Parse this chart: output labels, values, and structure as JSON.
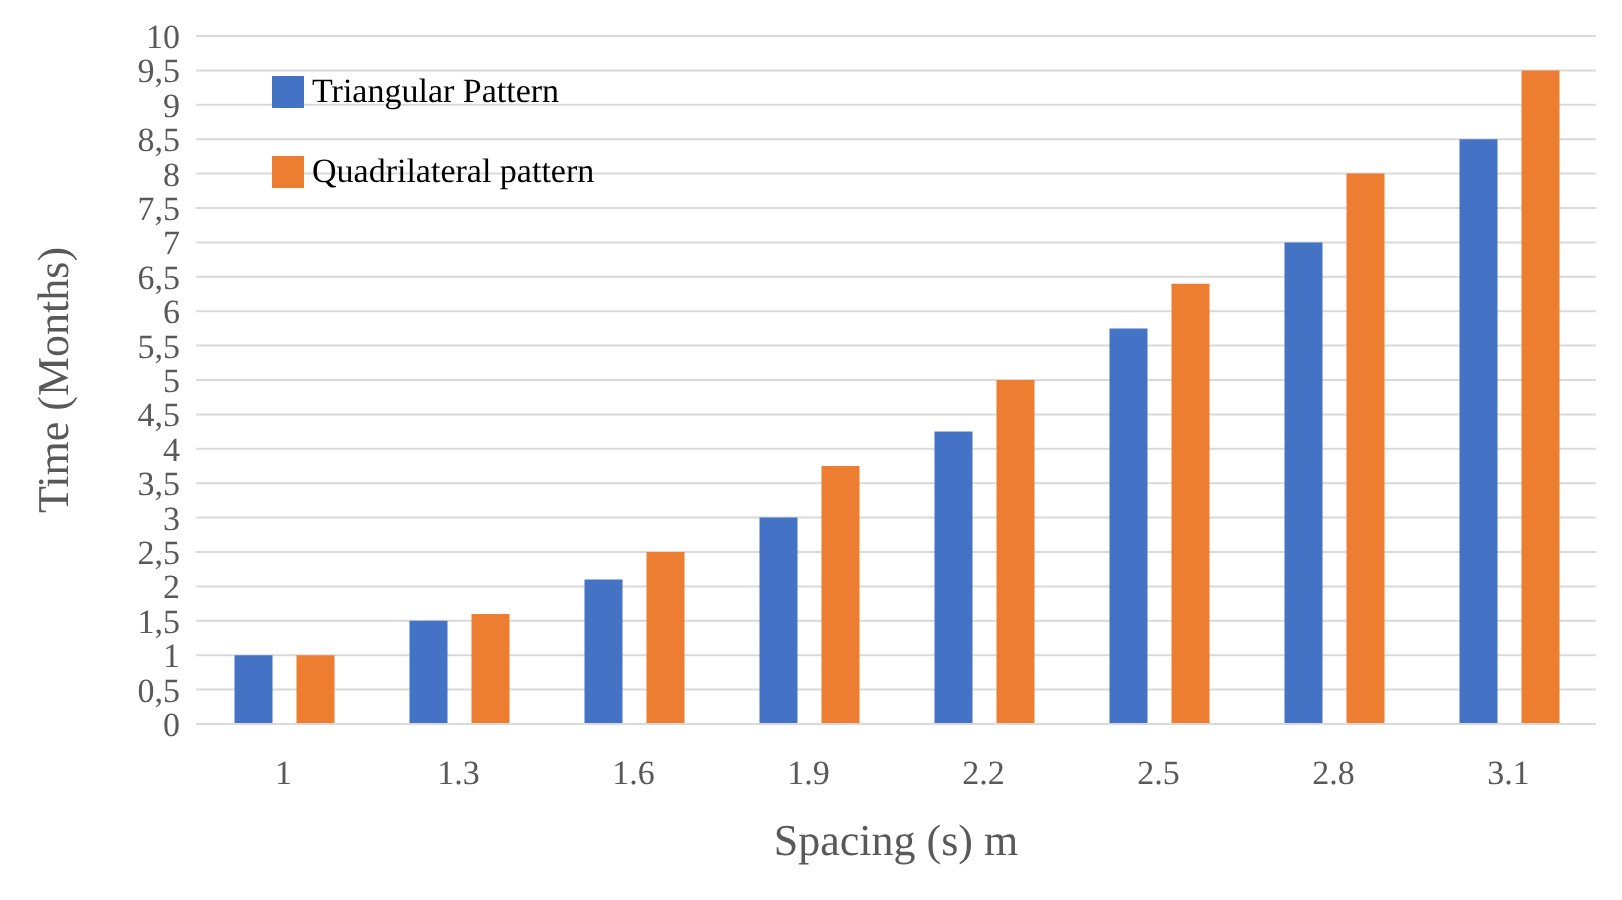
{
  "chart_data": {
    "type": "bar",
    "xlabel": "Spacing (s) m",
    "ylabel": "Time (Months)",
    "categories": [
      "1",
      "1.3",
      "1.6",
      "1.9",
      "2.2",
      "2.5",
      "2.8",
      "3.1"
    ],
    "series": [
      {
        "name": "Triangular Pattern",
        "color": "#4472c4",
        "values": [
          1,
          1.5,
          2.1,
          3,
          4.25,
          5.75,
          7,
          8.5
        ]
      },
      {
        "name": "Quadrilateral pattern",
        "color": "#ed7d31",
        "values": [
          1,
          1.6,
          2.5,
          3.75,
          5,
          6.4,
          8,
          9.5
        ]
      }
    ],
    "ylim": [
      0,
      10
    ],
    "yticks": [
      0,
      {
        "value": 0.5,
        "label": "0,5"
      },
      1,
      {
        "value": 1.5,
        "label": "1,5"
      },
      2,
      {
        "value": 2.5,
        "label": "2,5"
      },
      3,
      {
        "value": 3.5,
        "label": "3,5"
      },
      4,
      {
        "value": 4.5,
        "label": "4,5"
      },
      5,
      {
        "value": 5.5,
        "label": "5,5"
      },
      6,
      {
        "value": 6.5,
        "label": "6,5"
      },
      7,
      {
        "value": 7.5,
        "label": "7,5"
      },
      8,
      {
        "value": 8.5,
        "label": "8,5"
      },
      9,
      {
        "value": 9.5,
        "label": "9,5"
      },
      10
    ],
    "grid": "y",
    "legend": "top left"
  }
}
